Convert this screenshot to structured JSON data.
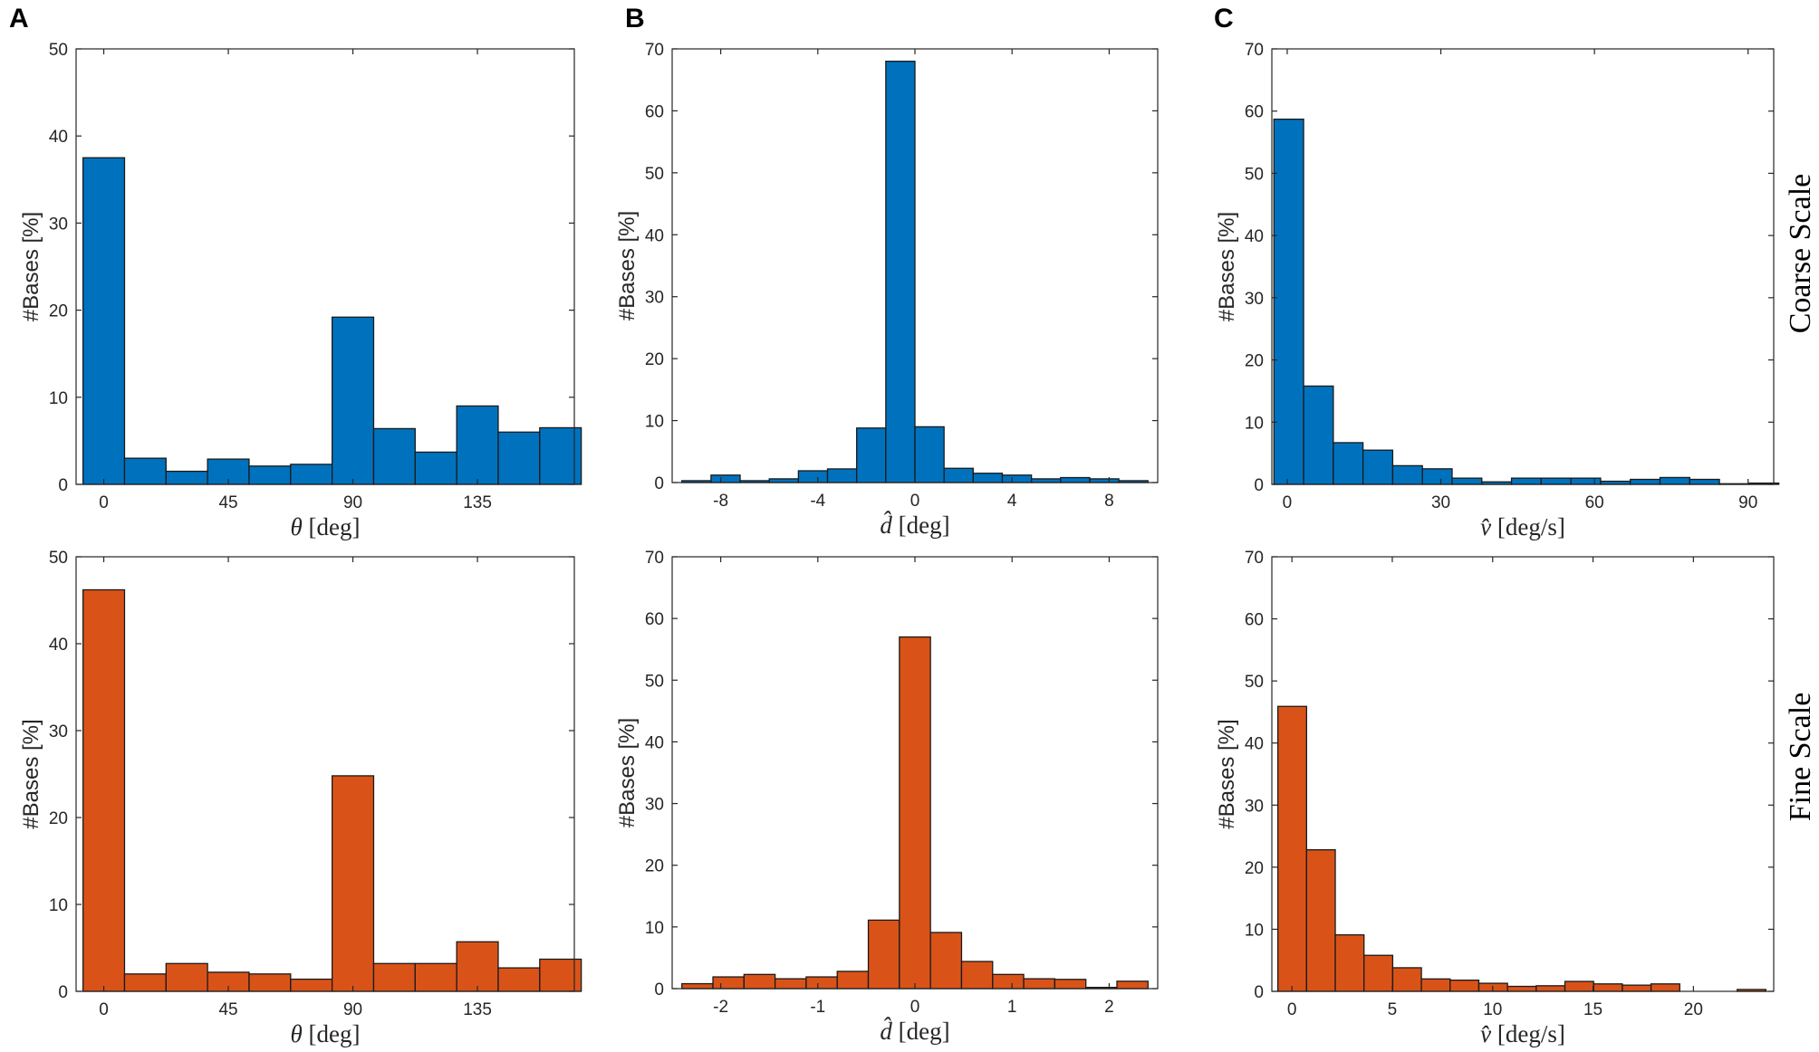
{
  "colors": {
    "coarse": "#0072BD",
    "fine": "#D95319",
    "edge": "#1a1a1a",
    "axis": "#262626"
  },
  "panel_letters": {
    "a": "A",
    "b": "B",
    "c": "C"
  },
  "row_labels": {
    "coarse": "Coarse Scale",
    "fine": "Fine Scale"
  },
  "chart_data": [
    {
      "type": "bar",
      "id": "coarse-theta",
      "panel": "A",
      "row": "coarse",
      "ylabel": "#Bases [%]",
      "xlabel_var": "θ",
      "xlabel_unit": " [deg]",
      "xlim": [
        -10,
        170
      ],
      "ylim": [
        0,
        50
      ],
      "xticks": [
        0,
        45,
        90,
        135
      ],
      "xticklabels": [
        "0",
        "45",
        "90",
        "135"
      ],
      "yticks": [
        0,
        10,
        20,
        30,
        40,
        50
      ],
      "yticklabels": [
        "0",
        "10",
        "20",
        "30",
        "40",
        "50"
      ],
      "bin_edges": [
        -7.5,
        7.5,
        22.5,
        37.5,
        52.5,
        67.5,
        82.5,
        97.5,
        112.5,
        127.5,
        142.5,
        157.5,
        172.5
      ],
      "values": [
        37.5,
        3.0,
        1.5,
        2.9,
        2.1,
        2.3,
        19.2,
        6.4,
        3.7,
        9.0,
        6.0,
        6.5
      ]
    },
    {
      "type": "bar",
      "id": "coarse-d",
      "panel": "B",
      "row": "coarse",
      "ylabel": "#Bases [%]",
      "xlabel_var": "d̂",
      "xlabel_unit": " [deg]",
      "xlim": [
        -10,
        10
      ],
      "ylim": [
        0,
        70
      ],
      "xticks": [
        -8,
        -4,
        0,
        4,
        8
      ],
      "xticklabels": [
        "-8",
        "-4",
        "0",
        "4",
        "8"
      ],
      "yticks": [
        0,
        10,
        20,
        30,
        40,
        50,
        60,
        70
      ],
      "yticklabels": [
        "0",
        "10",
        "20",
        "30",
        "40",
        "50",
        "60",
        "70"
      ],
      "bin_edges": [
        -9.6,
        -8.4,
        -7.2,
        -6.0,
        -4.8,
        -3.6,
        -2.4,
        -1.2,
        0.0,
        1.2,
        2.4,
        3.6,
        4.8,
        6.0,
        7.2,
        8.4,
        9.6
      ],
      "values": [
        0.3,
        1.2,
        0.3,
        0.6,
        1.9,
        2.2,
        8.8,
        68.0,
        9.0,
        2.3,
        1.5,
        1.2,
        0.6,
        0.8,
        0.6,
        0.3
      ]
    },
    {
      "type": "bar",
      "id": "coarse-v",
      "panel": "C",
      "row": "coarse",
      "ylabel": "#Bases [%]",
      "xlabel_var": "v̂",
      "xlabel_unit": " [deg/s]",
      "xlim": [
        -3,
        95
      ],
      "ylim": [
        0,
        70
      ],
      "xticks": [
        0,
        30,
        60,
        90
      ],
      "xticklabels": [
        "0",
        "30",
        "60",
        "90"
      ],
      "yticks": [
        0,
        10,
        20,
        30,
        40,
        50,
        60,
        70
      ],
      "yticklabels": [
        "0",
        "10",
        "20",
        "30",
        "40",
        "50",
        "60",
        "70"
      ],
      "bin_edges": [
        -2.6,
        3.2,
        9.0,
        14.8,
        20.6,
        26.4,
        32.2,
        38.0,
        43.8,
        49.6,
        55.4,
        61.2,
        67.0,
        72.8,
        78.6,
        84.4,
        90.2,
        96.0
      ],
      "values": [
        58.7,
        15.8,
        6.7,
        5.5,
        3.0,
        2.5,
        1.0,
        0.4,
        1.0,
        1.0,
        1.0,
        0.5,
        0.8,
        1.1,
        0.8,
        0.1,
        0.2
      ]
    },
    {
      "type": "bar",
      "id": "fine-theta",
      "panel": "A",
      "row": "fine",
      "ylabel": "#Bases [%]",
      "xlabel_var": "θ",
      "xlabel_unit": " [deg]",
      "xlim": [
        -10,
        170
      ],
      "ylim": [
        0,
        50
      ],
      "xticks": [
        0,
        45,
        90,
        135
      ],
      "xticklabels": [
        "0",
        "45",
        "90",
        "135"
      ],
      "yticks": [
        0,
        10,
        20,
        30,
        40,
        50
      ],
      "yticklabels": [
        "0",
        "10",
        "20",
        "30",
        "40",
        "50"
      ],
      "bin_edges": [
        -7.5,
        7.5,
        22.5,
        37.5,
        52.5,
        67.5,
        82.5,
        97.5,
        112.5,
        127.5,
        142.5,
        157.5,
        172.5
      ],
      "values": [
        46.2,
        2.0,
        3.2,
        2.2,
        2.0,
        1.4,
        24.8,
        3.2,
        3.2,
        5.7,
        2.7,
        3.7
      ]
    },
    {
      "type": "bar",
      "id": "fine-d",
      "panel": "B",
      "row": "fine",
      "ylabel": "#Bases [%]",
      "xlabel_var": "d̂",
      "xlabel_unit": " [deg]",
      "xlim": [
        -2.5,
        2.5
      ],
      "ylim": [
        0,
        70
      ],
      "xticks": [
        -2,
        -1,
        0,
        1,
        2
      ],
      "xticklabels": [
        "-2",
        "-1",
        "0",
        "1",
        "2"
      ],
      "yticks": [
        0,
        10,
        20,
        30,
        40,
        50,
        60,
        70
      ],
      "yticklabels": [
        "0",
        "10",
        "20",
        "30",
        "40",
        "50",
        "60",
        "70"
      ],
      "bin_edges": [
        -2.4,
        -2.08,
        -1.76,
        -1.44,
        -1.12,
        -0.8,
        -0.48,
        -0.16,
        0.16,
        0.48,
        0.8,
        1.12,
        1.44,
        1.76,
        2.08,
        2.4
      ],
      "values": [
        0.8,
        1.9,
        2.3,
        1.6,
        1.9,
        2.8,
        11.1,
        57.0,
        9.1,
        4.4,
        2.3,
        1.6,
        1.5,
        0.2,
        1.2
      ]
    },
    {
      "type": "bar",
      "id": "fine-v",
      "panel": "C",
      "row": "fine",
      "ylabel": "#Bases [%]",
      "xlabel_var": "v̂",
      "xlabel_unit": " [deg/s]",
      "xlim": [
        -1,
        24
      ],
      "ylim": [
        0,
        70
      ],
      "xticks": [
        0,
        5,
        10,
        15,
        20
      ],
      "xticklabels": [
        "0",
        "5",
        "10",
        "15",
        "20"
      ],
      "yticks": [
        0,
        10,
        20,
        30,
        40,
        50,
        60,
        70
      ],
      "yticklabels": [
        "0",
        "10",
        "20",
        "30",
        "40",
        "50",
        "60",
        "70"
      ],
      "bin_edges": [
        -0.7,
        0.73,
        2.16,
        3.59,
        5.02,
        6.45,
        7.88,
        9.31,
        10.74,
        12.17,
        13.6,
        15.03,
        16.46,
        17.89,
        19.32,
        20.75,
        22.18,
        23.61
      ],
      "values": [
        45.9,
        22.8,
        9.1,
        5.8,
        3.8,
        2.0,
        1.8,
        1.3,
        0.8,
        0.9,
        1.6,
        1.2,
        1.0,
        1.2,
        0.0,
        0.0,
        0.3
      ]
    }
  ]
}
